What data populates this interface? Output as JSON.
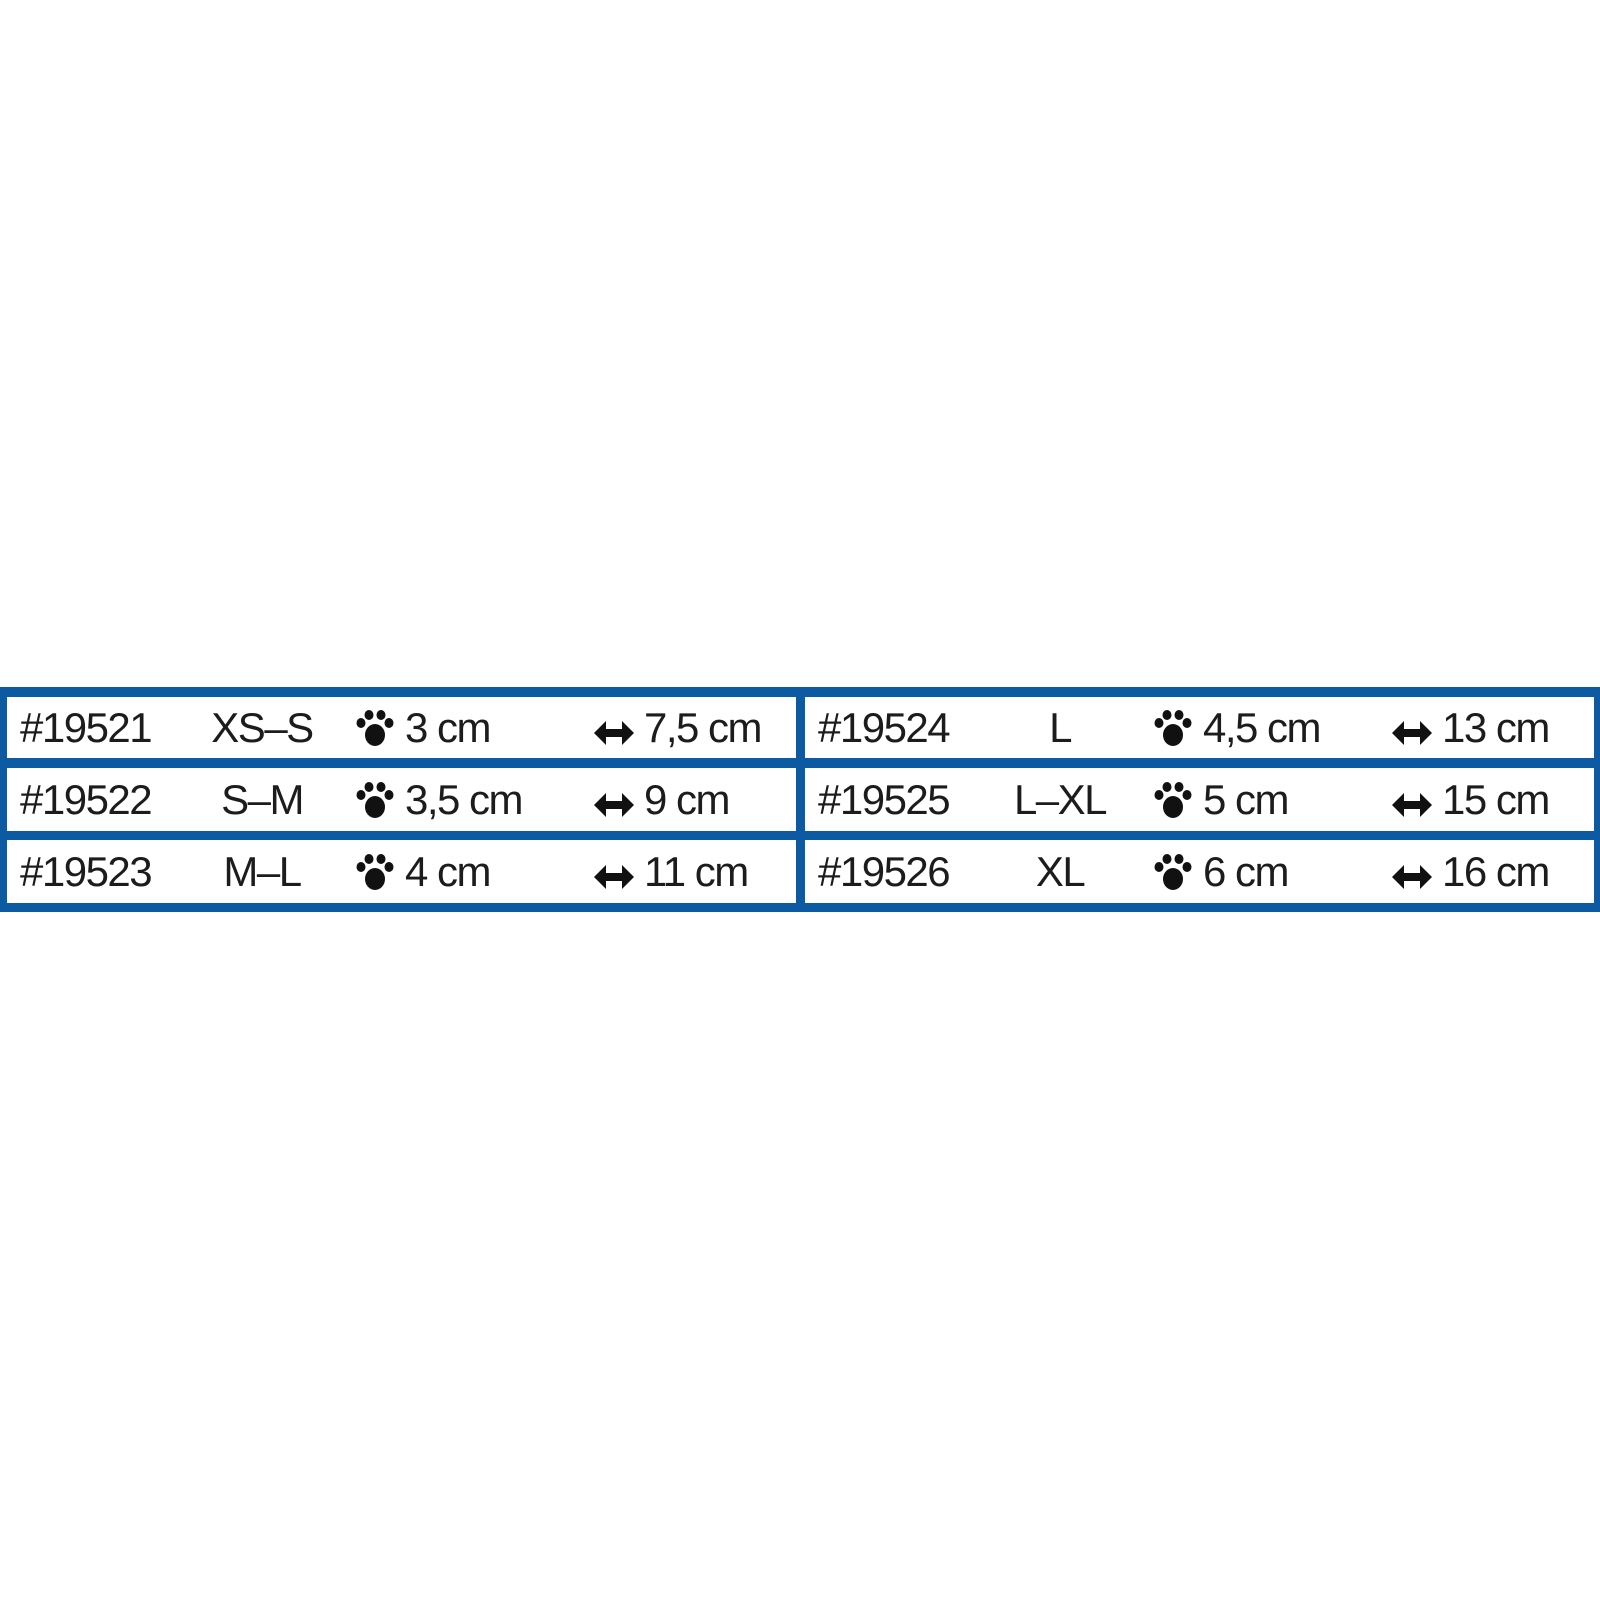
{
  "accent_color": "#0b5aa2",
  "icons": {
    "paw": "paw-icon",
    "width": "double-arrow-icon"
  },
  "left_rows": [
    {
      "code": "#19521",
      "size": "XS–S",
      "paw_width": "3 cm",
      "length": "7,5 cm"
    },
    {
      "code": "#19522",
      "size": "S–M",
      "paw_width": "3,5 cm",
      "length": "9 cm"
    },
    {
      "code": "#19523",
      "size": "M–L",
      "paw_width": "4 cm",
      "length": "11 cm"
    }
  ],
  "right_rows": [
    {
      "code": "#19524",
      "size": "L",
      "paw_width": "4,5 cm",
      "length": "13 cm"
    },
    {
      "code": "#19525",
      "size": "L–XL",
      "paw_width": "5 cm",
      "length": "15 cm"
    },
    {
      "code": "#19526",
      "size": "XL",
      "paw_width": "6 cm",
      "length": "16 cm"
    }
  ]
}
